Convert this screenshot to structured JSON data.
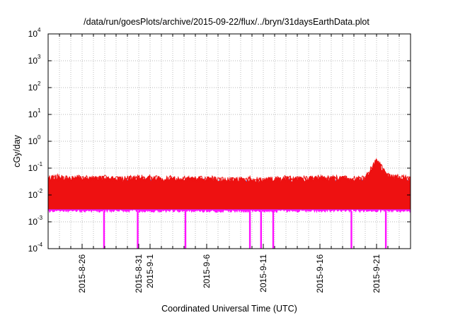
{
  "colors": {
    "background": "#ffffff",
    "grid": "#a0a0a0",
    "axis": "#000000",
    "red": "#ee1111",
    "blue": "#1a66ff",
    "green": "#11aa77",
    "magenta": "#ff11ff"
  },
  "chart_data": {
    "type": "line",
    "title": "/data/run/goesPlots/archive/2015-09-22/flux/../bryn/31daysEarthData.plot",
    "xlabel": "Coordinated Universal Time (UTC)",
    "ylabel": "cGy/day",
    "yscale": "log",
    "ylim": [
      0.0001,
      10000
    ],
    "xlim": [
      "2015-08-23",
      "2015-09-24"
    ],
    "grid": true,
    "y_ticks": [
      {
        "mantissa": "10",
        "exp": "-4",
        "value": 0.0001
      },
      {
        "mantissa": "10",
        "exp": "-3",
        "value": 0.001
      },
      {
        "mantissa": "10",
        "exp": "-2",
        "value": 0.01
      },
      {
        "mantissa": "10",
        "exp": "-1",
        "value": 0.1
      },
      {
        "mantissa": "10",
        "exp": "0",
        "value": 1
      },
      {
        "mantissa": "10",
        "exp": "1",
        "value": 10
      },
      {
        "mantissa": "10",
        "exp": "2",
        "value": 100
      },
      {
        "mantissa": "10",
        "exp": "3",
        "value": 1000
      },
      {
        "mantissa": "10",
        "exp": "4",
        "value": 10000
      }
    ],
    "x_ticks": [
      {
        "label": "2015-8-26",
        "date": "2015-08-26"
      },
      {
        "label": "2015-8-31",
        "date": "2015-08-31"
      },
      {
        "label": "2015-9-1",
        "date": "2015-09-01"
      },
      {
        "label": "2015-9-6",
        "date": "2015-09-06"
      },
      {
        "label": "2015-9-11",
        "date": "2015-09-11"
      },
      {
        "label": "2015-9-16",
        "date": "2015-09-16"
      },
      {
        "label": "2015-9-21",
        "date": "2015-09-21"
      }
    ],
    "series": [
      {
        "color": "#ff11ff",
        "x": [
          "2015-08-23",
          "2015-08-24",
          "2015-08-25",
          "2015-08-26",
          "2015-08-27",
          "2015-08-28",
          "2015-08-29",
          "2015-08-30",
          "2015-08-31",
          "2015-09-01",
          "2015-09-02",
          "2015-09-03",
          "2015-09-04",
          "2015-09-05",
          "2015-09-06",
          "2015-09-07",
          "2015-09-08",
          "2015-09-09",
          "2015-09-10",
          "2015-09-11",
          "2015-09-12",
          "2015-09-13",
          "2015-09-14",
          "2015-09-15",
          "2015-09-16",
          "2015-09-17",
          "2015-09-18",
          "2015-09-19",
          "2015-09-20",
          "2015-09-21",
          "2015-09-22",
          "2015-09-23",
          "2015-09-24"
        ],
        "y_high": [
          0.011,
          0.011,
          0.01,
          0.011,
          0.01,
          0.011,
          0.01,
          0.01,
          0.011,
          0.01,
          0.01,
          0.01,
          0.01,
          0.011,
          0.01,
          0.01,
          0.009,
          0.01,
          0.01,
          0.009,
          0.01,
          0.01,
          0.01,
          0.01,
          0.011,
          0.01,
          0.01,
          0.01,
          0.011,
          0.012,
          0.011,
          0.011,
          0.01
        ],
        "y_low": [
          0.0025,
          0.0025,
          0.0025,
          0.0025,
          0.0025,
          0.0025,
          0.0025,
          0.0025,
          0.0025,
          0.0025,
          0.0025,
          0.0025,
          0.0025,
          0.0025,
          0.0025,
          0.0025,
          0.0025,
          0.0025,
          0.0025,
          0.0025,
          0.0025,
          0.0025,
          0.0025,
          0.0025,
          0.0025,
          0.0025,
          0.0025,
          0.0025,
          0.0025,
          0.0025,
          0.0025,
          0.0025,
          0.0025
        ],
        "dropouts": [
          "2015-08-28",
          "2015-08-31",
          "2015-09-04",
          "2015-09-10",
          "2015-09-11",
          "2015-09-12",
          "2015-09-19",
          "2015-09-22"
        ]
      },
      {
        "color": "#11aa77",
        "x": [
          "2015-08-23",
          "2015-08-24",
          "2015-08-25",
          "2015-08-26",
          "2015-08-27",
          "2015-08-28",
          "2015-08-29",
          "2015-08-30",
          "2015-08-31",
          "2015-09-01",
          "2015-09-02",
          "2015-09-03",
          "2015-09-04",
          "2015-09-05",
          "2015-09-06",
          "2015-09-07",
          "2015-09-08",
          "2015-09-09",
          "2015-09-10",
          "2015-09-11",
          "2015-09-12",
          "2015-09-13",
          "2015-09-14",
          "2015-09-15",
          "2015-09-16",
          "2015-09-17",
          "2015-09-18",
          "2015-09-19",
          "2015-09-20",
          "2015-09-21",
          "2015-09-22",
          "2015-09-23",
          "2015-09-24"
        ],
        "y_high": [
          0.018,
          0.019,
          0.017,
          0.018,
          0.017,
          0.018,
          0.016,
          0.017,
          0.018,
          0.017,
          0.016,
          0.017,
          0.016,
          0.018,
          0.017,
          0.016,
          0.015,
          0.016,
          0.016,
          0.015,
          0.016,
          0.017,
          0.016,
          0.017,
          0.018,
          0.017,
          0.017,
          0.016,
          0.018,
          0.025,
          0.019,
          0.018,
          0.017
        ]
      },
      {
        "color": "#1a66ff",
        "x": [
          "2015-08-23",
          "2015-08-24",
          "2015-08-25",
          "2015-08-26",
          "2015-08-27",
          "2015-08-28",
          "2015-08-29",
          "2015-08-30",
          "2015-08-31",
          "2015-09-01",
          "2015-09-02",
          "2015-09-03",
          "2015-09-04",
          "2015-09-05",
          "2015-09-06",
          "2015-09-07",
          "2015-09-08",
          "2015-09-09",
          "2015-09-10",
          "2015-09-11",
          "2015-09-12",
          "2015-09-13",
          "2015-09-14",
          "2015-09-15",
          "2015-09-16",
          "2015-09-17",
          "2015-09-18",
          "2015-09-19",
          "2015-09-20",
          "2015-09-21",
          "2015-09-22",
          "2015-09-23",
          "2015-09-24"
        ],
        "y_high": [
          0.03,
          0.032,
          0.029,
          0.031,
          0.029,
          0.03,
          0.028,
          0.029,
          0.031,
          0.03,
          0.028,
          0.029,
          0.028,
          0.03,
          0.029,
          0.028,
          0.026,
          0.027,
          0.028,
          0.026,
          0.027,
          0.029,
          0.028,
          0.029,
          0.031,
          0.029,
          0.029,
          0.028,
          0.03,
          0.055,
          0.032,
          0.03,
          0.028
        ]
      },
      {
        "color": "#ee1111",
        "x": [
          "2015-08-23",
          "2015-08-24",
          "2015-08-25",
          "2015-08-26",
          "2015-08-27",
          "2015-08-28",
          "2015-08-29",
          "2015-08-30",
          "2015-08-31",
          "2015-09-01",
          "2015-09-02",
          "2015-09-03",
          "2015-09-04",
          "2015-09-05",
          "2015-09-06",
          "2015-09-07",
          "2015-09-08",
          "2015-09-09",
          "2015-09-10",
          "2015-09-11",
          "2015-09-12",
          "2015-09-13",
          "2015-09-14",
          "2015-09-15",
          "2015-09-16",
          "2015-09-17",
          "2015-09-18",
          "2015-09-19",
          "2015-09-20",
          "2015-09-21",
          "2015-09-22",
          "2015-09-23",
          "2015-09-24"
        ],
        "y_high": [
          0.042,
          0.046,
          0.04,
          0.044,
          0.04,
          0.042,
          0.039,
          0.041,
          0.044,
          0.042,
          0.039,
          0.041,
          0.039,
          0.042,
          0.041,
          0.039,
          0.036,
          0.038,
          0.039,
          0.036,
          0.038,
          0.041,
          0.039,
          0.041,
          0.044,
          0.041,
          0.041,
          0.039,
          0.043,
          0.19,
          0.05,
          0.045,
          0.04
        ]
      }
    ]
  }
}
